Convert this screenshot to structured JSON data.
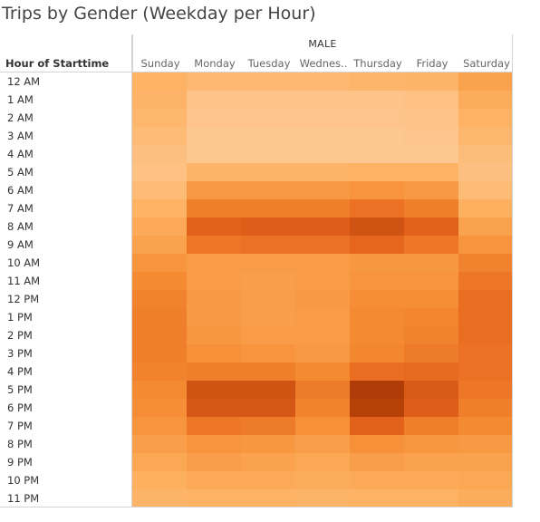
{
  "title": "Trips by Gender (Weekday per Hour)",
  "chart_data": {
    "type": "heatmap",
    "title": "Trips by Gender (Weekday per Hour)",
    "column_group": "MALE",
    "row_header": "Hour of Starttime",
    "columns": [
      "Sunday",
      "Monday",
      "Tuesday",
      "Wednes..",
      "Thursday",
      "Friday",
      "Saturday"
    ],
    "rows": [
      "12 AM",
      "1 AM",
      "2 AM",
      "3 AM",
      "4 AM",
      "5 AM",
      "6 AM",
      "7 AM",
      "8 AM",
      "9 AM",
      "10 AM",
      "11 AM",
      "12 PM",
      "1 PM",
      "2 PM",
      "3 PM",
      "4 PM",
      "5 PM",
      "6 PM",
      "7 PM",
      "8 PM",
      "9 PM",
      "10 PM",
      "11 PM"
    ],
    "values": [
      [
        0.28,
        0.22,
        0.22,
        0.22,
        0.25,
        0.26,
        0.4
      ],
      [
        0.26,
        0.12,
        0.12,
        0.12,
        0.12,
        0.14,
        0.32
      ],
      [
        0.24,
        0.1,
        0.1,
        0.1,
        0.1,
        0.12,
        0.28
      ],
      [
        0.2,
        0.08,
        0.08,
        0.08,
        0.08,
        0.1,
        0.24
      ],
      [
        0.16,
        0.08,
        0.08,
        0.08,
        0.08,
        0.08,
        0.18
      ],
      [
        0.14,
        0.26,
        0.26,
        0.26,
        0.28,
        0.28,
        0.16
      ],
      [
        0.2,
        0.46,
        0.46,
        0.46,
        0.5,
        0.46,
        0.2
      ],
      [
        0.28,
        0.62,
        0.62,
        0.62,
        0.68,
        0.62,
        0.3
      ],
      [
        0.34,
        0.76,
        0.78,
        0.78,
        0.84,
        0.76,
        0.4
      ],
      [
        0.4,
        0.66,
        0.68,
        0.68,
        0.74,
        0.66,
        0.5
      ],
      [
        0.5,
        0.44,
        0.44,
        0.44,
        0.48,
        0.48,
        0.6
      ],
      [
        0.56,
        0.44,
        0.42,
        0.44,
        0.5,
        0.5,
        0.66
      ],
      [
        0.6,
        0.46,
        0.42,
        0.46,
        0.54,
        0.54,
        0.7
      ],
      [
        0.62,
        0.46,
        0.42,
        0.44,
        0.56,
        0.58,
        0.7
      ],
      [
        0.62,
        0.48,
        0.44,
        0.44,
        0.56,
        0.6,
        0.7
      ],
      [
        0.62,
        0.52,
        0.5,
        0.46,
        0.58,
        0.64,
        0.68
      ],
      [
        0.6,
        0.62,
        0.62,
        0.56,
        0.7,
        0.72,
        0.68
      ],
      [
        0.56,
        0.84,
        0.84,
        0.64,
        0.96,
        0.8,
        0.66
      ],
      [
        0.54,
        0.82,
        0.82,
        0.6,
        0.94,
        0.78,
        0.62
      ],
      [
        0.5,
        0.66,
        0.64,
        0.52,
        0.76,
        0.62,
        0.56
      ],
      [
        0.42,
        0.5,
        0.48,
        0.42,
        0.52,
        0.48,
        0.46
      ],
      [
        0.36,
        0.42,
        0.4,
        0.36,
        0.42,
        0.4,
        0.4
      ],
      [
        0.3,
        0.34,
        0.34,
        0.32,
        0.34,
        0.34,
        0.36
      ],
      [
        0.26,
        0.28,
        0.28,
        0.26,
        0.28,
        0.28,
        0.32
      ]
    ],
    "value_note": "relative intensity 0-1 (color encoded, no scale shown)",
    "color_scale": [
      "#fdd0a2",
      "#a63603"
    ]
  }
}
